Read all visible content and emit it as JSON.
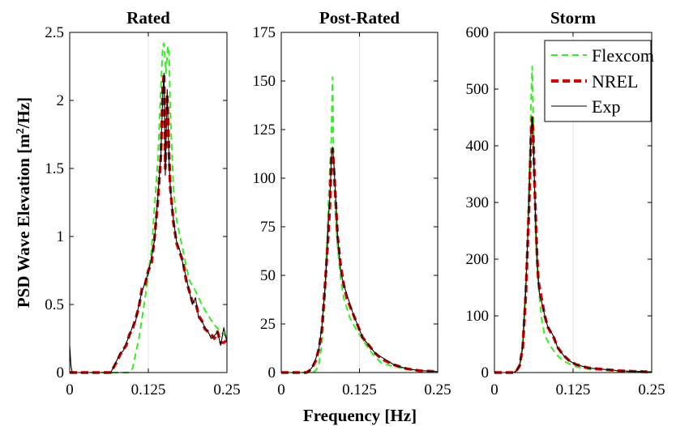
{
  "figure": {
    "ylabel_main": "PSD Wave Elevation [m",
    "ylabel_sup": "2",
    "ylabel_tail": "/Hz]",
    "xlabel": "Frequency [Hz]"
  },
  "legend": {
    "placement": "top-right",
    "entries": [
      {
        "label": "Flexcom",
        "color": "#33ee22",
        "style": "dashed"
      },
      {
        "label": "NREL",
        "color": "#dd0000",
        "style": "dashed"
      },
      {
        "label": "Exp",
        "color": "#000000",
        "style": "solid"
      }
    ]
  },
  "colors": {
    "flexcom": "#33ee22",
    "nrel": "#dd0000",
    "exp": "#000000",
    "grid": "#e6e6e6"
  },
  "chart_data": [
    {
      "type": "line",
      "title": "Rated",
      "xlim": [
        0,
        0.25
      ],
      "ylim": [
        0,
        2.5
      ],
      "xticks": [
        0,
        0.125,
        0.25
      ],
      "xtick_labels": [
        "0",
        "0.125",
        "0.25"
      ],
      "yticks": [
        0,
        0.5,
        1,
        1.5,
        2,
        2.5
      ],
      "ytick_labels": [
        "0",
        "0.5",
        "1",
        "1.5",
        "2",
        "2.5"
      ],
      "grid": true,
      "series": [
        {
          "name": "Flexcom",
          "key": "flexcom",
          "x": [
            0.0,
            0.095,
            0.1,
            0.11,
            0.12,
            0.13,
            0.14,
            0.145,
            0.148,
            0.15,
            0.153,
            0.156,
            0.158,
            0.16,
            0.165,
            0.17,
            0.18,
            0.19,
            0.2,
            0.21,
            0.22,
            0.23,
            0.24,
            0.25
          ],
          "y": [
            0.0,
            0.0,
            0.03,
            0.25,
            0.55,
            0.9,
            1.55,
            2.1,
            2.4,
            2.42,
            2.2,
            2.4,
            2.35,
            1.9,
            1.35,
            1.12,
            0.9,
            0.68,
            0.6,
            0.5,
            0.42,
            0.35,
            0.3,
            0.26
          ]
        },
        {
          "name": "NREL",
          "key": "nrel",
          "x": [
            0.0,
            0.065,
            0.07,
            0.075,
            0.08,
            0.085,
            0.09,
            0.095,
            0.1,
            0.105,
            0.11,
            0.115,
            0.12,
            0.125,
            0.13,
            0.135,
            0.14,
            0.145,
            0.148,
            0.15,
            0.152,
            0.155,
            0.158,
            0.16,
            0.165,
            0.17,
            0.175,
            0.18,
            0.185,
            0.19,
            0.195,
            0.2,
            0.205,
            0.21,
            0.215,
            0.22,
            0.225,
            0.23,
            0.235,
            0.24,
            0.245,
            0.25
          ],
          "y": [
            0.0,
            0.0,
            0.04,
            0.08,
            0.13,
            0.17,
            0.2,
            0.28,
            0.32,
            0.4,
            0.48,
            0.62,
            0.65,
            0.75,
            0.8,
            1.0,
            1.25,
            1.6,
            2.1,
            2.2,
            1.5,
            2.05,
            1.6,
            1.35,
            1.1,
            0.95,
            0.88,
            0.82,
            0.68,
            0.6,
            0.52,
            0.52,
            0.42,
            0.38,
            0.32,
            0.3,
            0.28,
            0.25,
            0.3,
            0.22,
            0.22,
            0.24
          ]
        },
        {
          "name": "Exp",
          "key": "exp",
          "x": [
            0.0,
            0.002,
            0.004,
            0.065,
            0.07,
            0.075,
            0.08,
            0.085,
            0.09,
            0.095,
            0.1,
            0.105,
            0.11,
            0.115,
            0.12,
            0.125,
            0.13,
            0.135,
            0.14,
            0.145,
            0.148,
            0.15,
            0.152,
            0.155,
            0.158,
            0.16,
            0.165,
            0.17,
            0.175,
            0.18,
            0.185,
            0.19,
            0.195,
            0.2,
            0.205,
            0.21,
            0.215,
            0.22,
            0.225,
            0.23,
            0.235,
            0.24,
            0.245,
            0.25
          ],
          "y": [
            0.2,
            0.05,
            0.0,
            0.0,
            0.04,
            0.09,
            0.14,
            0.16,
            0.22,
            0.27,
            0.34,
            0.38,
            0.5,
            0.6,
            0.66,
            0.74,
            0.84,
            0.98,
            1.28,
            1.6,
            2.05,
            2.2,
            1.45,
            2.08,
            1.55,
            1.35,
            1.12,
            0.96,
            0.9,
            0.8,
            0.7,
            0.6,
            0.5,
            0.55,
            0.4,
            0.38,
            0.33,
            0.3,
            0.25,
            0.27,
            0.3,
            0.2,
            0.33,
            0.22
          ]
        }
      ]
    },
    {
      "type": "line",
      "title": "Post-Rated",
      "xlim": [
        0,
        0.25
      ],
      "ylim": [
        0,
        175
      ],
      "xticks": [
        0,
        0.125,
        0.25
      ],
      "xtick_labels": [
        "0",
        "0.125",
        "0.25"
      ],
      "yticks": [
        0,
        25,
        50,
        75,
        100,
        125,
        150,
        175
      ],
      "ytick_labels": [
        "0",
        "25",
        "50",
        "75",
        "100",
        "125",
        "150",
        "175"
      ],
      "grid": true,
      "series": [
        {
          "name": "Flexcom",
          "key": "flexcom",
          "x": [
            0.0,
            0.05,
            0.055,
            0.06,
            0.065,
            0.07,
            0.074,
            0.077,
            0.08,
            0.082,
            0.084,
            0.087,
            0.09,
            0.095,
            0.1,
            0.11,
            0.12,
            0.13,
            0.14,
            0.15,
            0.16,
            0.18,
            0.2,
            0.22,
            0.25
          ],
          "y": [
            0.0,
            0.0,
            1,
            4,
            15,
            40,
            75,
            100,
            120,
            152,
            100,
            80,
            65,
            48,
            38,
            28,
            22,
            17,
            12,
            8,
            5,
            3,
            2,
            1,
            0.5
          ]
        },
        {
          "name": "NREL",
          "key": "nrel",
          "x": [
            0.0,
            0.04,
            0.045,
            0.05,
            0.055,
            0.06,
            0.065,
            0.07,
            0.075,
            0.078,
            0.08,
            0.082,
            0.085,
            0.088,
            0.09,
            0.095,
            0.1,
            0.105,
            0.11,
            0.115,
            0.12,
            0.125,
            0.13,
            0.14,
            0.15,
            0.16,
            0.18,
            0.2,
            0.22,
            0.25
          ],
          "y": [
            0.0,
            0.0,
            1,
            3,
            6,
            12,
            22,
            45,
            70,
            88,
            110,
            115,
            100,
            82,
            70,
            55,
            45,
            38,
            34,
            30,
            26,
            22,
            18,
            14,
            10,
            7,
            4,
            2,
            1,
            0.5
          ]
        },
        {
          "name": "Exp",
          "key": "exp",
          "x": [
            0.0,
            0.04,
            0.045,
            0.05,
            0.055,
            0.06,
            0.065,
            0.07,
            0.073,
            0.076,
            0.078,
            0.08,
            0.082,
            0.084,
            0.086,
            0.088,
            0.09,
            0.093,
            0.095,
            0.1,
            0.105,
            0.11,
            0.115,
            0.12,
            0.125,
            0.13,
            0.14,
            0.15,
            0.16,
            0.17,
            0.18,
            0.19,
            0.2,
            0.22,
            0.25
          ],
          "y": [
            0.0,
            0.0,
            1,
            3,
            7,
            12,
            24,
            44,
            60,
            82,
            92,
            110,
            116,
            108,
            96,
            84,
            70,
            60,
            52,
            45,
            40,
            35,
            30,
            26,
            22,
            18,
            14,
            10,
            8,
            6,
            4,
            3,
            2,
            1,
            0.5
          ]
        }
      ]
    },
    {
      "type": "line",
      "title": "Storm",
      "xlim": [
        0,
        0.25
      ],
      "ylim": [
        0,
        600
      ],
      "xticks": [
        0,
        0.125,
        0.25
      ],
      "xtick_labels": [
        "0",
        "0.125",
        "0.25"
      ],
      "yticks": [
        0,
        100,
        200,
        300,
        400,
        500,
        600
      ],
      "ytick_labels": [
        "0",
        "100",
        "200",
        "300",
        "400",
        "500",
        "600"
      ],
      "grid": true,
      "series": [
        {
          "name": "Flexcom",
          "key": "flexcom",
          "x": [
            0.0,
            0.03,
            0.035,
            0.04,
            0.045,
            0.05,
            0.055,
            0.058,
            0.06,
            0.062,
            0.064,
            0.066,
            0.07,
            0.075,
            0.08,
            0.085,
            0.09,
            0.1,
            0.11,
            0.12,
            0.13,
            0.15,
            0.2,
            0.25
          ],
          "y": [
            0.0,
            0.0,
            3,
            10,
            50,
            160,
            330,
            470,
            540,
            440,
            330,
            230,
            150,
            95,
            65,
            55,
            45,
            30,
            20,
            15,
            10,
            6,
            2,
            1
          ]
        },
        {
          "name": "NREL",
          "key": "nrel",
          "x": [
            0.0,
            0.03,
            0.035,
            0.04,
            0.045,
            0.05,
            0.055,
            0.058,
            0.06,
            0.062,
            0.064,
            0.066,
            0.068,
            0.07,
            0.075,
            0.08,
            0.085,
            0.09,
            0.095,
            0.1,
            0.11,
            0.12,
            0.13,
            0.15,
            0.2,
            0.25
          ],
          "y": [
            0.0,
            0.0,
            3,
            12,
            45,
            140,
            290,
            410,
            450,
            410,
            330,
            260,
            200,
            160,
            130,
            100,
            80,
            70,
            60,
            45,
            30,
            20,
            14,
            8,
            3,
            1
          ]
        },
        {
          "name": "Exp",
          "key": "exp",
          "x": [
            0.0,
            0.03,
            0.035,
            0.04,
            0.045,
            0.05,
            0.055,
            0.058,
            0.06,
            0.062,
            0.064,
            0.066,
            0.068,
            0.07,
            0.072,
            0.075,
            0.078,
            0.08,
            0.085,
            0.09,
            0.095,
            0.1,
            0.11,
            0.12,
            0.13,
            0.15,
            0.2,
            0.25
          ],
          "y": [
            0.0,
            0.0,
            3,
            12,
            45,
            150,
            300,
            420,
            450,
            400,
            320,
            250,
            200,
            160,
            135,
            125,
            110,
            100,
            80,
            72,
            62,
            45,
            30,
            20,
            14,
            8,
            3,
            1
          ]
        }
      ]
    }
  ]
}
